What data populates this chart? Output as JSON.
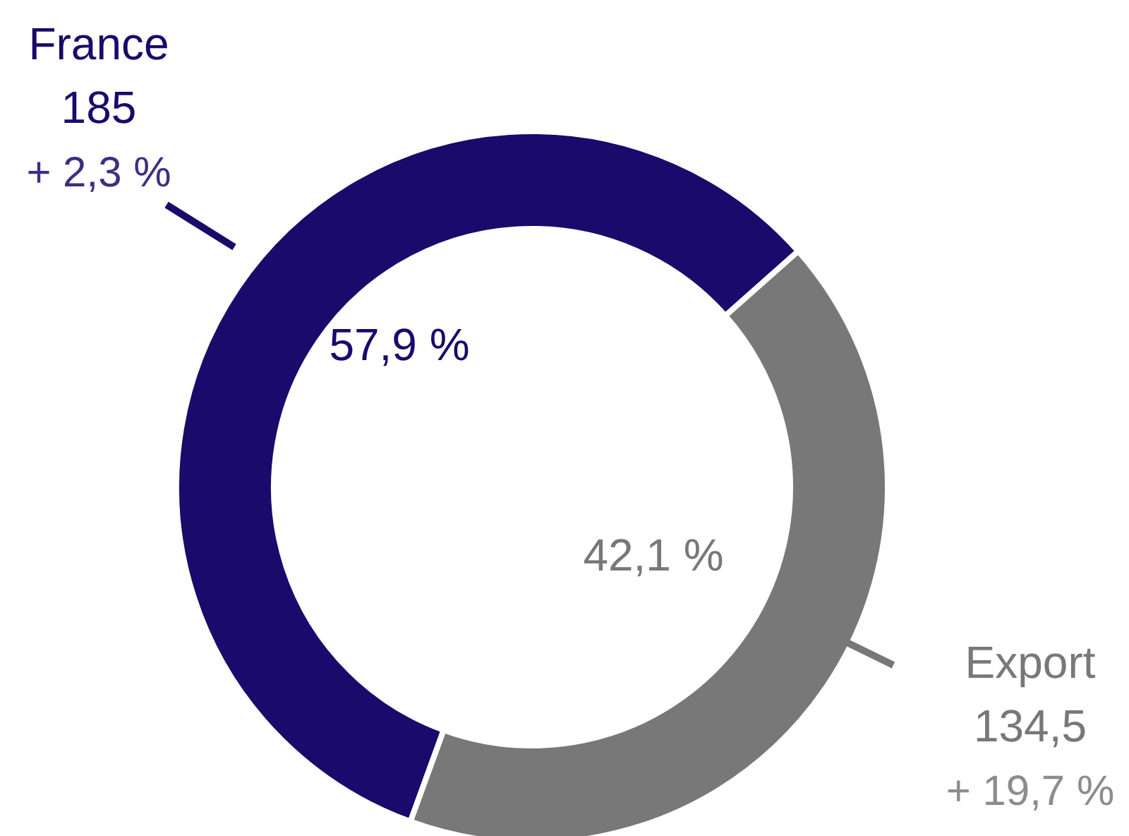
{
  "chart_data": {
    "type": "donut",
    "categories": [
      "France",
      "Export"
    ],
    "values": [
      185,
      134.5
    ],
    "colors": [
      "#1a0a6b",
      "#787878"
    ],
    "value_labels": [
      "185",
      "134,5"
    ],
    "annotations": [
      "57,9 %",
      "42,1 %",
      "+ 2,3 %",
      "+ 19,7 %"
    ]
  }
}
